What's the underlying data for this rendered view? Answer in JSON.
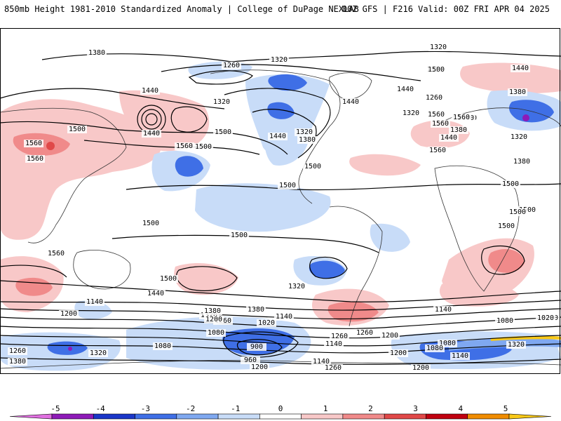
{
  "header": {
    "title_left": "850mb Height 1981-2010 Standardized Anomaly | College of DuPage NEXLAB",
    "title_right": "00Z GFS | F216 Valid: 00Z FRI APR 04 2025"
  },
  "colorbar": {
    "labels": [
      "-5",
      "-4",
      "-3",
      "-2",
      "-1",
      "0",
      "1",
      "2",
      "3",
      "4",
      "5"
    ],
    "colors": [
      "#e070e0",
      "#8e1ab8",
      "#1a36c8",
      "#3f6fe6",
      "#7fa8f0",
      "#c8dcf8",
      "#ffffff",
      "#f8c8c8",
      "#f08a8a",
      "#e04848",
      "#c00010",
      "#f08c00",
      "#f8c818"
    ]
  },
  "map": {
    "contour_labels": [
      "1380",
      "1320",
      "1260",
      "1320",
      "1440",
      "1380",
      "1440",
      "1320",
      "1500",
      "1560",
      "1440",
      "1560",
      "1320",
      "1440",
      "1500",
      "1560",
      "1500",
      "1440",
      "1320",
      "1380",
      "1500",
      "1500",
      "1560",
      "1500",
      "1500",
      "1440",
      "1320",
      "1440",
      "1260",
      "1320",
      "1500",
      "1380",
      "1560",
      "1440",
      "1380",
      "1500",
      "1560",
      "1560",
      "1500",
      "1500",
      "1500",
      "1500",
      "1560",
      "1500",
      "1440",
      "1320",
      "1380",
      "1260",
      "1200",
      "1140",
      "1080",
      "1020",
      "900",
      "960",
      "1200",
      "1140",
      "1200",
      "1260",
      "1140",
      "1080",
      "1020",
      "1080",
      "1260",
      "1320",
      "1380",
      "1200",
      "1140",
      "1080",
      "1380",
      "1320",
      "1260",
      "1140",
      "1200",
      "1260",
      "1320",
      "1080",
      "1140",
      "1020",
      "1200"
    ]
  }
}
